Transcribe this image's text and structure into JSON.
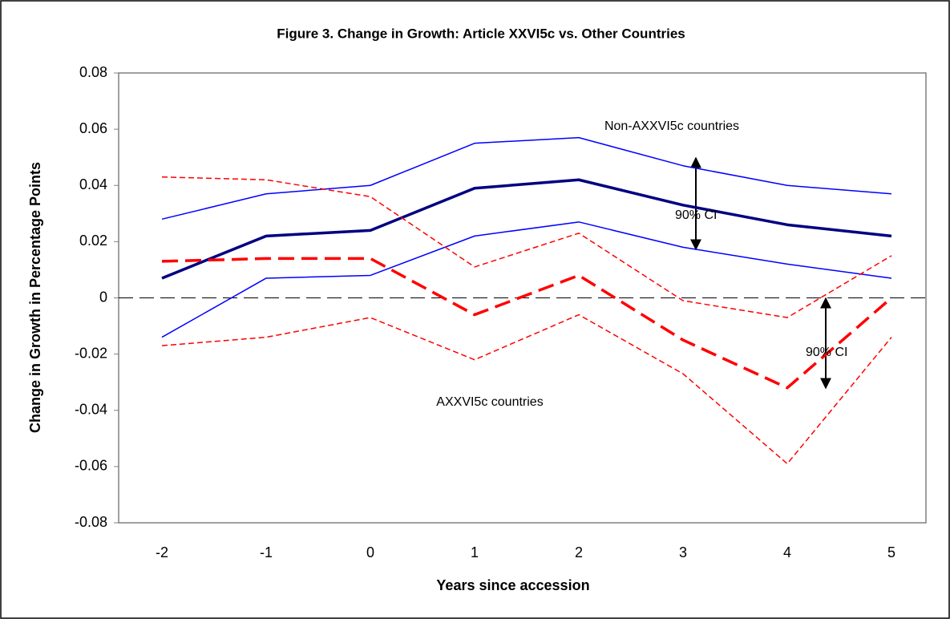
{
  "chart_data": {
    "type": "line",
    "title": "Figure 3. Change in Growth: Article XXVI5c vs. Other Countries",
    "x_label": "Years since accession",
    "y_label": "Change in Growth in Percentage Points",
    "categories": [
      "-2",
      "-1",
      "0",
      "1",
      "2",
      "3",
      "4",
      "5"
    ],
    "ylim": [
      -0.08,
      0.08
    ],
    "yticks": [
      0.08,
      0.06,
      0.04,
      0.02,
      0,
      -0.02,
      -0.04,
      -0.06,
      -0.08
    ],
    "series": [
      {
        "color": "#000080",
        "line_style": "thick-solid",
        "values": [
          0.007,
          0.022,
          0.024,
          0.039,
          0.042,
          0.033,
          0.026,
          0.022
        ]
      },
      {
        "color": "#0000ff",
        "line_style": "thin-solid",
        "values": [
          0.028,
          0.037,
          0.04,
          0.055,
          0.057,
          0.047,
          0.04,
          0.037
        ]
      },
      {
        "color": "#0000ff",
        "line_style": "thin-solid",
        "values": [
          -0.014,
          0.007,
          0.008,
          0.022,
          0.027,
          0.018,
          0.012,
          0.007
        ]
      },
      {
        "color": "#ff0000",
        "line_style": "thick-dashed",
        "values": [
          0.013,
          0.014,
          0.014,
          -0.006,
          0.008,
          -0.015,
          -0.032,
          0.0
        ]
      },
      {
        "color": "#ff0000",
        "line_style": "thin-dashed",
        "values": [
          0.043,
          0.042,
          0.036,
          0.011,
          0.023,
          -0.001,
          -0.007,
          0.015
        ]
      },
      {
        "color": "#ff0000",
        "line_style": "thin-dashed",
        "values": [
          -0.017,
          -0.014,
          -0.007,
          -0.022,
          -0.006,
          -0.027,
          -0.059,
          -0.014
        ]
      }
    ],
    "annotations": [
      "Non-AXXVI5c countries",
      "AXXVI5c countries",
      "90% CI",
      "90% CI"
    ]
  }
}
